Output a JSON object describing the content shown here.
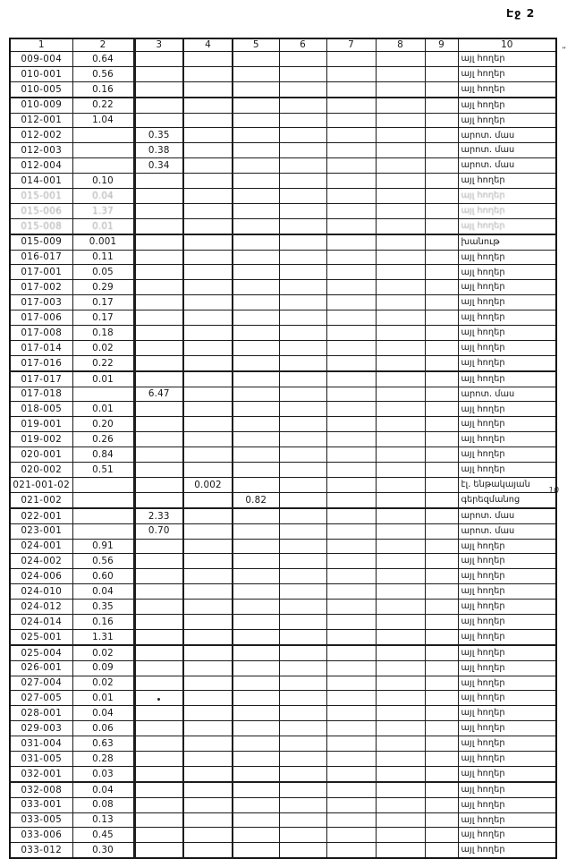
{
  "page": {
    "page_label": "Էջ 2",
    "margin_marks": {
      "top_right_quote": "”",
      "mid_right_number": "10"
    }
  },
  "table": {
    "headers": [
      "1",
      "2",
      "3",
      "4",
      "5",
      "6",
      "7",
      "8",
      "9",
      "10"
    ],
    "rows": [
      {
        "cells": [
          "009-004",
          "0.64",
          "",
          "",
          "",
          "",
          "",
          "",
          "",
          "այլ հողեր"
        ],
        "faded": false
      },
      {
        "cells": [
          "010-001",
          "0.56",
          "",
          "",
          "",
          "",
          "",
          "",
          "",
          "այլ հողեր"
        ],
        "faded": false
      },
      {
        "cells": [
          "010-005",
          "0.16",
          "",
          "",
          "",
          "",
          "",
          "",
          "",
          "այլ հողեր"
        ],
        "faded": false
      },
      {
        "cells": [
          "010-009",
          "0.22",
          "",
          "",
          "",
          "",
          "",
          "",
          "",
          "այլ հողեր"
        ],
        "faded": false
      },
      {
        "cells": [
          "012-001",
          "1.04",
          "",
          "",
          "",
          "",
          "",
          "",
          "",
          "այլ հողեր"
        ],
        "faded": false
      },
      {
        "cells": [
          "012-002",
          "",
          "0.35",
          "",
          "",
          "",
          "",
          "",
          "",
          "արոտ. մաս"
        ],
        "faded": false
      },
      {
        "cells": [
          "012-003",
          "",
          "0.38",
          "",
          "",
          "",
          "",
          "",
          "",
          "արոտ. մաս"
        ],
        "faded": false
      },
      {
        "cells": [
          "012-004",
          "",
          "0.34",
          "",
          "",
          "",
          "",
          "",
          "",
          "արոտ. մաս"
        ],
        "faded": false
      },
      {
        "cells": [
          "014-001",
          "0.10",
          "",
          "",
          "",
          "",
          "",
          "",
          "",
          "այլ հողեր"
        ],
        "faded": false
      },
      {
        "cells": [
          "015-001",
          "0.04",
          "",
          "",
          "",
          "",
          "",
          "",
          "",
          "այլ հողեր"
        ],
        "faded": true
      },
      {
        "cells": [
          "015-006",
          "1.37",
          "",
          "",
          "",
          "",
          "",
          "",
          "",
          "այլ հողեր"
        ],
        "faded": true
      },
      {
        "cells": [
          "015-008",
          "0.01",
          "",
          "",
          "",
          "",
          "",
          "",
          "",
          "այլ հողեր"
        ],
        "faded": true
      },
      {
        "cells": [
          "015-009",
          "0.001",
          "",
          "",
          "",
          "",
          "",
          "",
          "",
          "խանութ"
        ],
        "faded": false
      },
      {
        "cells": [
          "016-017",
          "0.11",
          "",
          "",
          "",
          "",
          "",
          "",
          "",
          "այլ հողեր"
        ],
        "faded": false
      },
      {
        "cells": [
          "017-001",
          "0.05",
          "",
          "",
          "",
          "",
          "",
          "",
          "",
          "այլ հողեր"
        ],
        "faded": false
      },
      {
        "cells": [
          "017-002",
          "0.29",
          "",
          "",
          "",
          "",
          "",
          "",
          "",
          "այլ հողեր"
        ],
        "faded": false
      },
      {
        "cells": [
          "017-003",
          "0.17",
          "",
          "",
          "",
          "",
          "",
          "",
          "",
          "այլ հողեր"
        ],
        "faded": false
      },
      {
        "cells": [
          "017-006",
          "0.17",
          "",
          "",
          "",
          "",
          "",
          "",
          "",
          "այլ հողեր"
        ],
        "faded": false
      },
      {
        "cells": [
          "017-008",
          "0.18",
          "",
          "",
          "",
          "",
          "",
          "",
          "",
          "այլ հողեր"
        ],
        "faded": false
      },
      {
        "cells": [
          "017-014",
          "0.02",
          "",
          "",
          "",
          "",
          "",
          "",
          "",
          "այլ հողեր"
        ],
        "faded": false
      },
      {
        "cells": [
          "017-016",
          "0.22",
          "",
          "",
          "",
          "",
          "",
          "",
          "",
          "այլ հողեր"
        ],
        "faded": false
      },
      {
        "cells": [
          "017-017",
          "0.01",
          "",
          "",
          "",
          "",
          "",
          "",
          "",
          "այլ հողեր"
        ],
        "faded": false
      },
      {
        "cells": [
          "017-018",
          "",
          "6.47",
          "",
          "",
          "",
          "",
          "",
          "",
          "արոտ. մաս"
        ],
        "faded": false
      },
      {
        "cells": [
          "018-005",
          "0.01",
          "",
          "",
          "",
          "",
          "",
          "",
          "",
          "այլ հողեր"
        ],
        "faded": false
      },
      {
        "cells": [
          "019-001",
          "0.20",
          "",
          "",
          "",
          "",
          "",
          "",
          "",
          "այլ հողեր"
        ],
        "faded": false
      },
      {
        "cells": [
          "019-002",
          "0.26",
          "",
          "",
          "",
          "",
          "",
          "",
          "",
          "այլ հողեր"
        ],
        "faded": false
      },
      {
        "cells": [
          "020-001",
          "0.84",
          "",
          "",
          "",
          "",
          "",
          "",
          "",
          "այլ հողեր"
        ],
        "faded": false
      },
      {
        "cells": [
          "020-002",
          "0.51",
          "",
          "",
          "",
          "",
          "",
          "",
          "",
          "այլ հողեր"
        ],
        "faded": false
      },
      {
        "cells": [
          "021-001-02",
          "",
          "",
          "0.002",
          "",
          "",
          "",
          "",
          "",
          "էլ. ենթակայան"
        ],
        "faded": false
      },
      {
        "cells": [
          "021-002",
          "",
          "",
          "",
          "0.82",
          "",
          "",
          "",
          "",
          "գերեզմանոց"
        ],
        "faded": false
      },
      {
        "cells": [
          "022-001",
          "",
          "2.33",
          "",
          "",
          "",
          "",
          "",
          "",
          "արոտ. մաս"
        ],
        "faded": false
      },
      {
        "cells": [
          "023-001",
          "",
          "0.70",
          "",
          "",
          "",
          "",
          "",
          "",
          "արոտ. մաս"
        ],
        "faded": false
      },
      {
        "cells": [
          "024-001",
          "0.91",
          "",
          "",
          "",
          "",
          "",
          "",
          "",
          "այլ հողեր"
        ],
        "faded": false
      },
      {
        "cells": [
          "024-002",
          "0.56",
          "",
          "",
          "",
          "",
          "",
          "",
          "",
          "այլ հողեր"
        ],
        "faded": false
      },
      {
        "cells": [
          "024-006",
          "0.60",
          "",
          "",
          "",
          "",
          "",
          "",
          "",
          "այլ հողեր"
        ],
        "faded": false
      },
      {
        "cells": [
          "024-010",
          "0.04",
          "",
          "",
          "",
          "",
          "",
          "",
          "",
          "այլ հողեր"
        ],
        "faded": false
      },
      {
        "cells": [
          "024-012",
          "0.35",
          "",
          "",
          "",
          "",
          "",
          "",
          "",
          "այլ հողեր"
        ],
        "faded": false
      },
      {
        "cells": [
          "024-014",
          "0.16",
          "",
          "",
          "",
          "",
          "",
          "",
          "",
          "այլ հողեր"
        ],
        "faded": false
      },
      {
        "cells": [
          "025-001",
          "1.31",
          "",
          "",
          "",
          "",
          "",
          "",
          "",
          "այլ հողեր"
        ],
        "faded": false
      },
      {
        "cells": [
          "025-004",
          "0.02",
          "",
          "",
          "",
          "",
          "",
          "",
          "",
          "այլ հողեր"
        ],
        "faded": false
      },
      {
        "cells": [
          "026-001",
          "0.09",
          "",
          "",
          "",
          "",
          "",
          "",
          "",
          "այլ հողեր"
        ],
        "faded": false
      },
      {
        "cells": [
          "027-004",
          "0.02",
          "",
          "",
          "",
          "",
          "",
          "",
          "",
          "այլ հողեր"
        ],
        "faded": false
      },
      {
        "cells": [
          "027-005",
          "0.01",
          "",
          "",
          "",
          "",
          "",
          "",
          "",
          "այլ հողեր"
        ],
        "faded": false
      },
      {
        "cells": [
          "028-001",
          "0.04",
          "",
          "",
          "",
          "",
          "",
          "",
          "",
          "այլ հողեր"
        ],
        "faded": false
      },
      {
        "cells": [
          "029-003",
          "0.06",
          "",
          "",
          "",
          "",
          "",
          "",
          "",
          "այլ հողեր"
        ],
        "faded": false
      },
      {
        "cells": [
          "031-004",
          "0.63",
          "",
          "",
          "",
          "",
          "",
          "",
          "",
          "այլ հողեր"
        ],
        "faded": false
      },
      {
        "cells": [
          "031-005",
          "0.28",
          "",
          "",
          "",
          "",
          "",
          "",
          "",
          "այլ հողեր"
        ],
        "faded": false
      },
      {
        "cells": [
          "032-001",
          "0.03",
          "",
          "",
          "",
          "",
          "",
          "",
          "",
          "այլ հողեր"
        ],
        "faded": false
      },
      {
        "cells": [
          "032-008",
          "0.04",
          "",
          "",
          "",
          "",
          "",
          "",
          "",
          "այլ հողեր"
        ],
        "faded": false
      },
      {
        "cells": [
          "033-001",
          "0.08",
          "",
          "",
          "",
          "",
          "",
          "",
          "",
          "այլ հողեր"
        ],
        "faded": false
      },
      {
        "cells": [
          "033-005",
          "0.13",
          "",
          "",
          "",
          "",
          "",
          "",
          "",
          "այլ հողեր"
        ],
        "faded": false
      },
      {
        "cells": [
          "033-006",
          "0.45",
          "",
          "",
          "",
          "",
          "",
          "",
          "",
          "այլ հողեր"
        ],
        "faded": false
      },
      {
        "cells": [
          "033-012",
          "0.30",
          "",
          "",
          "",
          "",
          "",
          "",
          "",
          "այլ հողեր"
        ],
        "faded": false
      }
    ]
  }
}
